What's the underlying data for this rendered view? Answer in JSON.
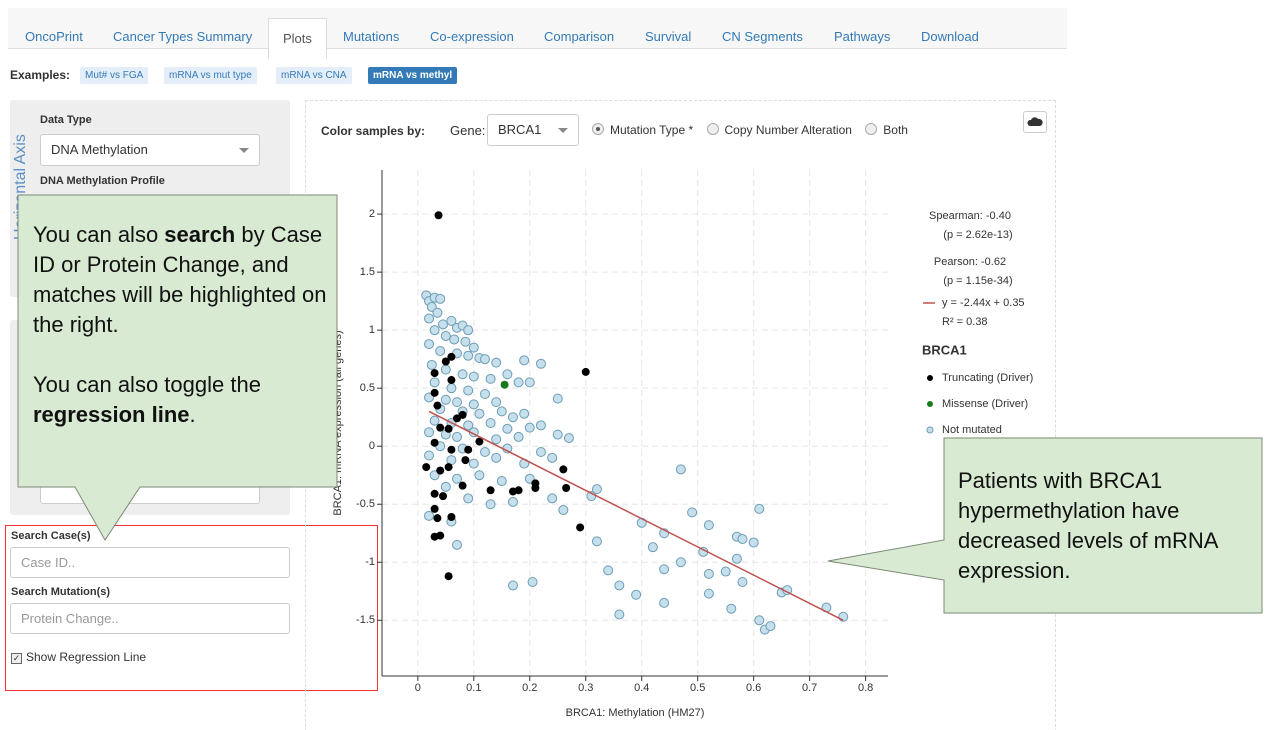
{
  "tabs": [
    "OncoPrint",
    "Cancer Types Summary",
    "Plots",
    "Mutations",
    "Co-expression",
    "Comparison",
    "Survival",
    "CN Segments",
    "Pathways",
    "Download"
  ],
  "examples": {
    "label": "Examples:",
    "items": [
      "Mut# vs FGA",
      "mRNA vs mut type",
      "mRNA vs CNA",
      "mRNA vs methyl"
    ]
  },
  "sidebar": {
    "axis_title": "Horizontal Axis",
    "data_type_label": "Data Type",
    "data_type_value": "DNA Methylation",
    "profile_label": "DNA Methylation Profile"
  },
  "search": {
    "case_label": "Search Case(s)",
    "case_placeholder": "Case ID..",
    "mutation_label": "Search Mutation(s)",
    "mutation_placeholder": "Protein Change..",
    "regression_label": "Show Regression Line"
  },
  "toolbar": {
    "color_label": "Color samples by:",
    "gene_label": "Gene:",
    "gene_value": "BRCA1",
    "options": [
      "Mutation Type *",
      "Copy Number Alteration",
      "Both"
    ]
  },
  "callouts": [
    {
      "paragraphs": [
        [
          "You can also ",
          "search",
          " by Case ID or Protein Change, and matches will be highlighted on the right."
        ],
        [
          "You can also toggle the ",
          "regression line",
          "."
        ]
      ]
    },
    {
      "text": "Patients with BRCA1 hypermethylation have decreased levels of mRNA expression."
    }
  ],
  "chart_data": {
    "type": "scatter",
    "x_label": "BRCA1: Methylation (HM27)",
    "y_label": "BRCA1: mRNA expression (all genes)",
    "xlim": [
      -0.064,
      0.84
    ],
    "ylim": [
      -1.98,
      2.38
    ],
    "xticks": [
      0,
      0.1,
      0.2,
      0.3,
      0.4,
      0.5,
      0.6,
      0.7,
      0.8
    ],
    "yticks": [
      -1.5,
      -1,
      -0.5,
      0,
      0.5,
      1,
      1.5,
      2
    ],
    "grid": true,
    "stats": [
      "Spearman: -0.40",
      "(p = 2.62e-13)",
      "Pearson: -0.62",
      "(p = 1.15e-34)"
    ],
    "regression_line": {
      "color": "#c0504d",
      "labels": [
        "y = -2.44x + 0.35",
        "R² = 0.38"
      ],
      "x": [
        0.02,
        0.76
      ],
      "values": [
        0.3,
        -1.5
      ]
    },
    "legend_title": "BRCA1",
    "series": [
      {
        "name": "Truncating (Driver)",
        "color": "#000000",
        "x": [
          0.037,
          0.05,
          0.06,
          0.03,
          0.06,
          0.03,
          0.3,
          0.07,
          0.08,
          0.04,
          0.055,
          0.11,
          0.03,
          0.06,
          0.09,
          0.015,
          0.04,
          0.055,
          0.085,
          0.08,
          0.03,
          0.045,
          0.13,
          0.17,
          0.18,
          0.21,
          0.21,
          0.26,
          0.265,
          0.03,
          0.035,
          0.06,
          0.03,
          0.04,
          0.29,
          0.055,
          0.035
        ],
        "values": [
          1.99,
          0.73,
          0.77,
          0.63,
          0.57,
          0.46,
          0.64,
          0.24,
          0.27,
          0.16,
          0.15,
          0.04,
          0.03,
          -0.03,
          -0.03,
          -0.18,
          -0.21,
          -0.18,
          -0.12,
          -0.34,
          -0.41,
          -0.43,
          -0.38,
          -0.39,
          -0.38,
          -0.32,
          -0.36,
          -0.2,
          -0.36,
          -0.54,
          -0.62,
          -0.61,
          -0.78,
          -0.77,
          -0.7,
          -1.12,
          0.35
        ]
      },
      {
        "name": "Missense (Driver)",
        "color": "#1a7a1a",
        "x": [
          0.155
        ],
        "values": [
          0.53
        ]
      },
      {
        "name": "Not mutated",
        "color": "#c6dfec",
        "x": [
          0.015,
          0.02,
          0.03,
          0.04,
          0.025,
          0.035,
          0.02,
          0.045,
          0.06,
          0.07,
          0.08,
          0.09,
          0.03,
          0.05,
          0.065,
          0.085,
          0.1,
          0.02,
          0.04,
          0.07,
          0.09,
          0.11,
          0.12,
          0.14,
          0.19,
          0.22,
          0.025,
          0.05,
          0.08,
          0.1,
          0.13,
          0.16,
          0.18,
          0.2,
          0.03,
          0.06,
          0.09,
          0.12,
          0.02,
          0.05,
          0.07,
          0.1,
          0.14,
          0.25,
          0.04,
          0.08,
          0.11,
          0.15,
          0.17,
          0.19,
          0.03,
          0.06,
          0.09,
          0.13,
          0.16,
          0.2,
          0.22,
          0.02,
          0.05,
          0.07,
          0.1,
          0.14,
          0.18,
          0.25,
          0.04,
          0.08,
          0.12,
          0.16,
          0.22,
          0.02,
          0.06,
          0.1,
          0.14,
          0.19,
          0.24,
          0.03,
          0.07,
          0.11,
          0.15,
          0.2,
          0.05,
          0.09,
          0.13,
          0.17,
          0.24,
          0.06,
          0.07,
          0.02,
          0.32,
          0.31,
          0.32,
          0.34,
          0.36,
          0.36,
          0.39,
          0.4,
          0.42,
          0.44,
          0.44,
          0.44,
          0.47,
          0.47,
          0.49,
          0.51,
          0.52,
          0.52,
          0.52,
          0.55,
          0.57,
          0.57,
          0.58,
          0.58,
          0.56,
          0.6,
          0.61,
          0.61,
          0.62,
          0.63,
          0.65,
          0.66,
          0.73,
          0.76,
          0.17,
          0.205,
          0.26,
          0.27
        ],
        "values": [
          1.3,
          1.25,
          1.28,
          1.27,
          1.2,
          1.15,
          1.1,
          1.05,
          1.08,
          1.02,
          1.04,
          1.0,
          1.0,
          0.95,
          0.92,
          0.9,
          0.85,
          0.88,
          0.82,
          0.8,
          0.78,
          0.76,
          0.75,
          0.72,
          0.74,
          0.71,
          0.7,
          0.66,
          0.62,
          0.6,
          0.58,
          0.62,
          0.55,
          0.55,
          0.55,
          0.5,
          0.48,
          0.45,
          0.42,
          0.4,
          0.38,
          0.36,
          0.38,
          0.41,
          0.32,
          0.3,
          0.28,
          0.3,
          0.25,
          0.28,
          0.22,
          0.2,
          0.18,
          0.2,
          0.15,
          0.16,
          0.18,
          0.12,
          0.1,
          0.08,
          0.12,
          0.06,
          0.08,
          0.1,
          0.0,
          -0.02,
          -0.05,
          -0.02,
          -0.05,
          -0.08,
          -0.12,
          -0.15,
          -0.1,
          -0.15,
          -0.1,
          -0.25,
          -0.28,
          -0.25,
          -0.3,
          -0.28,
          -0.35,
          -0.45,
          -0.5,
          -0.48,
          -0.45,
          -0.65,
          -0.85,
          -0.6,
          -0.37,
          -0.43,
          -0.82,
          -1.07,
          -1.45,
          -1.2,
          -1.28,
          -0.66,
          -0.87,
          -0.75,
          -1.06,
          -1.35,
          -1.0,
          -0.2,
          -0.57,
          -0.91,
          -0.68,
          -1.1,
          -1.27,
          -1.08,
          -0.97,
          -0.78,
          -0.8,
          -1.17,
          -1.4,
          -0.83,
          -0.54,
          -1.5,
          -1.58,
          -1.55,
          -1.26,
          -1.24,
          -1.39,
          -1.47,
          -1.2,
          -1.17,
          -0.55,
          0.07
        ]
      }
    ]
  }
}
